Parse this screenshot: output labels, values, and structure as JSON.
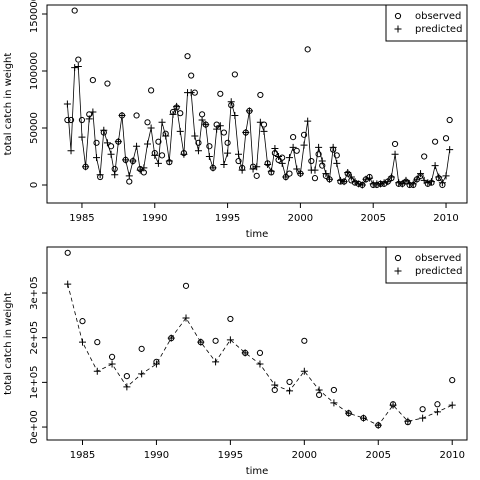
{
  "chart_data": [
    {
      "type": "line",
      "xlabel": "time",
      "ylabel": "total catch in weight",
      "x": [
        1984,
        1984.25,
        1984.5,
        1984.75,
        1985,
        1985.25,
        1985.5,
        1985.75,
        1986,
        1986.25,
        1986.5,
        1986.75,
        1987,
        1987.25,
        1987.5,
        1987.75,
        1988,
        1988.25,
        1988.5,
        1988.75,
        1989,
        1989.25,
        1989.5,
        1989.75,
        1990,
        1990.25,
        1990.5,
        1990.75,
        1991,
        1991.25,
        1991.5,
        1991.75,
        1992,
        1992.25,
        1992.5,
        1992.75,
        1993,
        1993.25,
        1993.5,
        1993.75,
        1994,
        1994.25,
        1994.5,
        1994.75,
        1995,
        1995.25,
        1995.5,
        1995.75,
        1996,
        1996.25,
        1996.5,
        1996.75,
        1997,
        1997.25,
        1997.5,
        1997.75,
        1998,
        1998.25,
        1998.5,
        1998.75,
        1999,
        1999.25,
        1999.5,
        1999.75,
        2000,
        2000.25,
        2000.5,
        2000.75,
        2001,
        2001.25,
        2001.5,
        2001.75,
        2002,
        2002.25,
        2002.5,
        2002.75,
        2003,
        2003.25,
        2003.5,
        2003.75,
        2004,
        2004.25,
        2004.5,
        2004.75,
        2005,
        2005.25,
        2005.5,
        2005.75,
        2006,
        2006.25,
        2006.5,
        2006.75,
        2007,
        2007.25,
        2007.5,
        2007.75,
        2008,
        2008.25,
        2008.5,
        2008.75,
        2009,
        2009.25,
        2009.5,
        2009.75,
        2010,
        2010.25
      ],
      "series": [
        {
          "name": "observed",
          "marker": "circle",
          "line": false,
          "color": "#000000",
          "values": [
            57000,
            57000,
            153000,
            110000,
            57000,
            16000,
            62000,
            92000,
            37000,
            7000,
            46000,
            89000,
            34000,
            14000,
            38000,
            61000,
            22000,
            3000,
            21000,
            61000,
            14000,
            11000,
            55000,
            83000,
            28000,
            38000,
            26000,
            45000,
            20000,
            64000,
            68000,
            63000,
            28000,
            113000,
            96000,
            81000,
            37000,
            62000,
            53000,
            34000,
            15000,
            53000,
            80000,
            46000,
            37000,
            70000,
            97000,
            21000,
            15000,
            46000,
            65000,
            16000,
            8000,
            79000,
            53000,
            19000,
            11000,
            28000,
            22000,
            24000,
            7000,
            10000,
            42000,
            30000,
            10000,
            44000,
            119000,
            21000,
            6000,
            27000,
            17000,
            8000,
            5000,
            31000,
            26000,
            3000,
            3000,
            10000,
            4000,
            2000,
            1000,
            0,
            5000,
            7000,
            0,
            0,
            1000,
            1000,
            3000,
            6000,
            36000,
            1000,
            1000,
            3000,
            0,
            0,
            5000,
            8000,
            25000,
            1000,
            2000,
            38000,
            6000,
            0,
            41000,
            57000
          ]
        },
        {
          "name": "predicted",
          "marker": "plus",
          "line": true,
          "linestyle": "solid",
          "color": "#000000",
          "values": [
            71000,
            30000,
            103000,
            104000,
            42000,
            16000,
            58000,
            64000,
            24000,
            9000,
            48000,
            37000,
            27000,
            9000,
            38000,
            61000,
            22000,
            8000,
            21000,
            34000,
            13000,
            15000,
            36000,
            50000,
            26000,
            19000,
            55000,
            43000,
            21000,
            62000,
            69000,
            47000,
            27000,
            81000,
            81000,
            43000,
            30000,
            57000,
            53000,
            25000,
            15000,
            49000,
            52000,
            18000,
            28000,
            73000,
            61000,
            27000,
            13000,
            46000,
            65000,
            14000,
            16000,
            55000,
            47000,
            18000,
            12000,
            32000,
            25000,
            19000,
            7000,
            24000,
            33000,
            14000,
            10000,
            35000,
            56000,
            13000,
            13000,
            33000,
            21000,
            10000,
            5000,
            33000,
            19000,
            4000,
            3000,
            11000,
            7000,
            3000,
            1000,
            0,
            5000,
            6000,
            1000,
            1000,
            1000,
            2000,
            3000,
            7000,
            27000,
            2000,
            1000,
            4000,
            1000,
            1000,
            5000,
            10000,
            4000,
            2000,
            3000,
            17000,
            7000,
            2000,
            8000,
            31000
          ]
        }
      ],
      "xlim": [
        1982.6,
        2011.44
      ],
      "xticks": [
        1985,
        1990,
        1995,
        2000,
        2005,
        2010
      ],
      "ylim": [
        -15800,
        157900
      ],
      "yticks": [
        0,
        50000,
        100000,
        150000
      ],
      "legend": "top-right"
    },
    {
      "type": "line",
      "xlabel": "time",
      "ylabel": "total catch in weight",
      "x": [
        1984,
        1985,
        1986,
        1987,
        1988,
        1989,
        1990,
        1991,
        1992,
        1993,
        1994,
        1995,
        1996,
        1997,
        1998,
        1999,
        2000,
        2001,
        2002,
        2003,
        2004,
        2005,
        2006,
        2007,
        2008,
        2009,
        2010
      ],
      "series": [
        {
          "name": "observed",
          "marker": "circle",
          "line": false,
          "color": "#000000",
          "values": [
            390000,
            237000,
            190000,
            157000,
            114000,
            175000,
            146000,
            199000,
            316000,
            190000,
            193000,
            242000,
            166000,
            166000,
            83000,
            101000,
            193000,
            72000,
            83000,
            31000,
            20000,
            4000,
            51000,
            11000,
            40000,
            51000,
            105000
          ]
        },
        {
          "name": "predicted",
          "marker": "plus",
          "line": true,
          "linestyle": "dashed",
          "color": "#000000",
          "values": [
            320000,
            190000,
            125000,
            141000,
            90000,
            119000,
            141000,
            199000,
            244000,
            190000,
            146000,
            195000,
            166000,
            141000,
            94000,
            81000,
            125000,
            83000,
            54000,
            31000,
            20000,
            4000,
            49000,
            13000,
            20000,
            34000,
            49000
          ]
        }
      ],
      "xlim": [
        1982.6,
        2011.0
      ],
      "xticks": [
        1985,
        1990,
        1995,
        2000,
        2005,
        2010
      ],
      "ylim": [
        -29000,
        403000
      ],
      "yticks": [
        {
          "value": 0,
          "label": "0e+00"
        },
        {
          "value": 100000,
          "label": "1e+05"
        },
        {
          "value": 200000,
          "label": "2e+05"
        },
        {
          "value": 300000,
          "label": "3e+05"
        }
      ],
      "legend": "top-right"
    }
  ]
}
